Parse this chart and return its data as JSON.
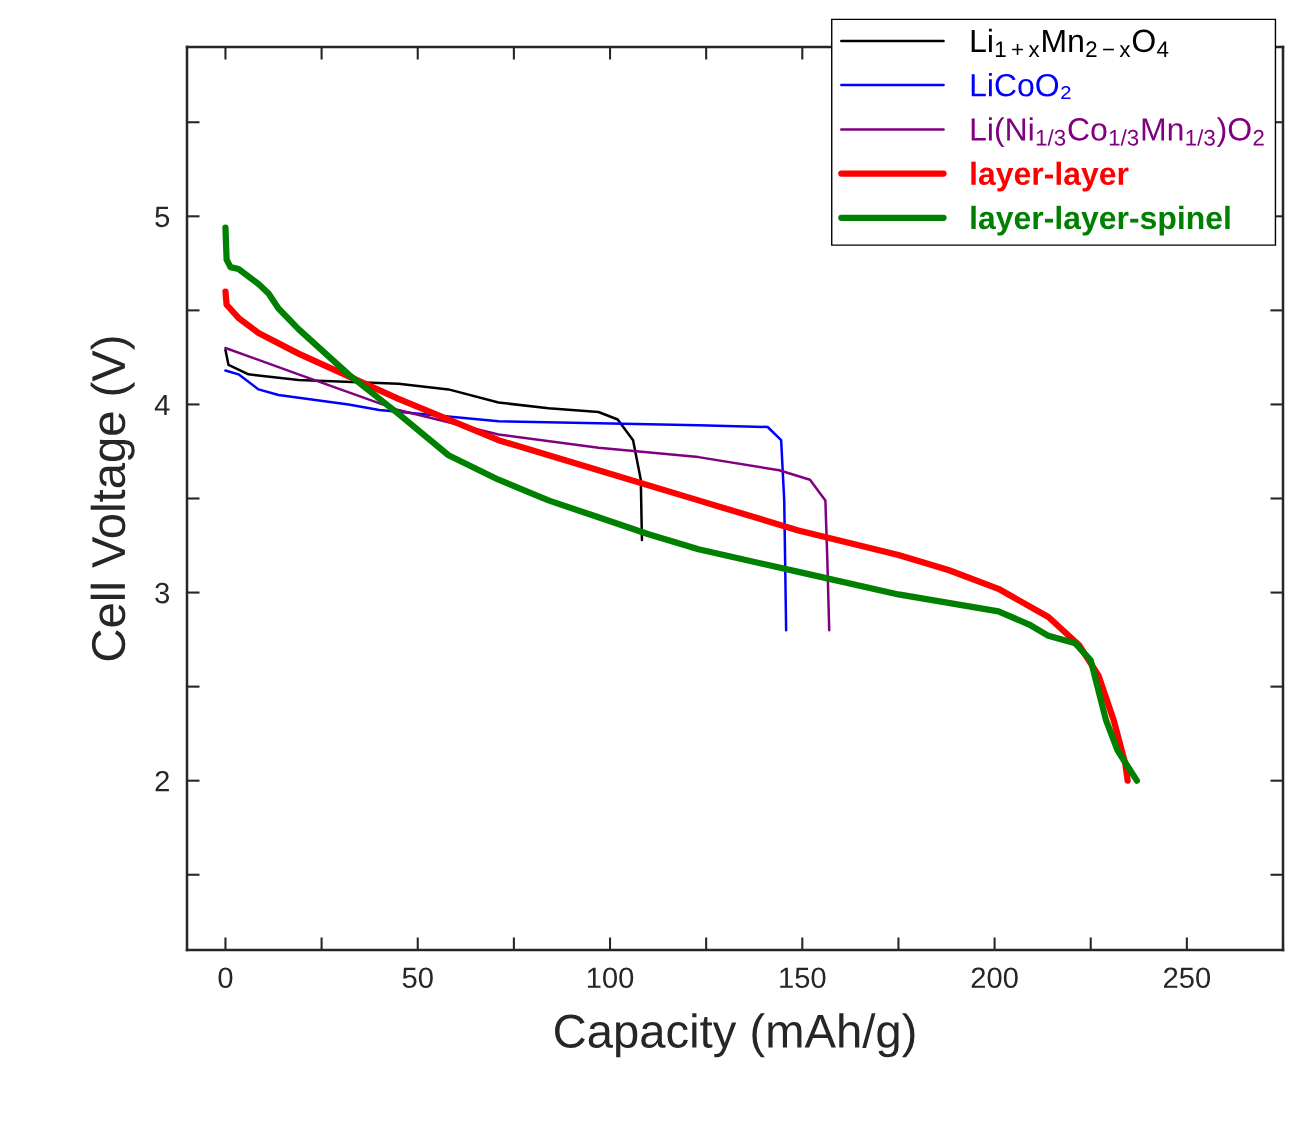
{
  "chart_data": {
    "type": "line",
    "xlabel": "Capacity (mAh/g)",
    "ylabel": "Cell Voltage (V)",
    "xlim": [
      -10,
      275
    ],
    "ylim": [
      1.1,
      5.9
    ],
    "xticks": [
      0,
      {
        "value": 25,
        "label": null
      },
      50,
      {
        "value": 75,
        "label": null
      },
      100,
      {
        "value": 125,
        "label": null
      },
      150,
      {
        "value": 175,
        "label": null
      },
      200,
      {
        "value": 225,
        "label": null
      },
      250,
      {
        "value": 275,
        "label": null
      }
    ],
    "yticks": [
      {
        "value": 1.5,
        "label": null
      },
      2,
      {
        "value": 2.5,
        "label": null
      },
      3,
      {
        "value": 3.5,
        "label": null
      },
      4,
      {
        "value": 4.5,
        "label": null
      },
      5,
      {
        "value": 5.5,
        "label": null
      }
    ],
    "grid": false,
    "legend": "top right",
    "marker": "none",
    "line_style": "solid",
    "series": [
      {
        "name": "Li$_{1+x}$Mn$_{2−x}$O$_{4}$",
        "color": "#000000",
        "x": [
          0,
          0.8,
          6,
          19,
          45,
          58,
          71,
          84,
          97,
          102,
          106,
          108,
          108.3
        ],
        "values": [
          4.29,
          4.21,
          4.16,
          4.13,
          4.11,
          4.08,
          4.01,
          3.98,
          3.96,
          3.92,
          3.81,
          3.6,
          3.28
        ]
      },
      {
        "name": "LiCoO₂",
        "color": "#0000ff",
        "x": [
          0,
          3.4,
          8.6,
          13.8,
          32,
          40,
          71,
          97,
          123,
          141,
          144.5,
          145.3,
          145.8
        ],
        "values": [
          4.18,
          4.16,
          4.08,
          4.05,
          4.0,
          3.97,
          3.91,
          3.9,
          3.89,
          3.88,
          3.81,
          3.49,
          2.8
        ]
      },
      {
        "name": "Li(Ni$_{1/3}$Co$_{1/3}$Mn$_{1/3}$)O$_{2}$",
        "color": "#800080",
        "x": [
          0,
          19,
          45,
          71,
          97,
          123,
          144,
          152,
          156,
          156.5,
          157
        ],
        "values": [
          4.3,
          4.16,
          3.97,
          3.84,
          3.77,
          3.72,
          3.65,
          3.6,
          3.49,
          3.18,
          2.8
        ]
      },
      {
        "name": "layer-layer",
        "color": "#ff0000",
        "x": [
          0,
          0.3,
          3.4,
          8.6,
          19,
          45,
          71,
          97,
          123,
          149,
          175,
          188,
          201,
          214,
          222,
          227,
          231,
          234,
          234.6
        ],
        "values": [
          4.6,
          4.53,
          4.46,
          4.38,
          4.27,
          4.03,
          3.81,
          3.65,
          3.49,
          3.33,
          3.2,
          3.12,
          3.02,
          2.87,
          2.72,
          2.56,
          2.32,
          2.09,
          2.0
        ]
      },
      {
        "name": "layer-layer-spinel",
        "color": "#008000",
        "x": [
          0,
          0.3,
          1.3,
          3.4,
          6,
          8.6,
          11.2,
          13.8,
          19,
          32,
          45,
          58,
          71,
          84,
          97,
          110,
          123,
          149,
          175,
          201,
          209,
          214,
          221,
          225,
          229,
          232,
          237
        ],
        "values": [
          4.94,
          4.77,
          4.73,
          4.72,
          4.68,
          4.64,
          4.59,
          4.51,
          4.4,
          4.16,
          3.95,
          3.73,
          3.6,
          3.49,
          3.4,
          3.31,
          3.23,
          3.11,
          2.99,
          2.9,
          2.83,
          2.77,
          2.73,
          2.64,
          2.32,
          2.16,
          2.0
        ]
      }
    ]
  }
}
